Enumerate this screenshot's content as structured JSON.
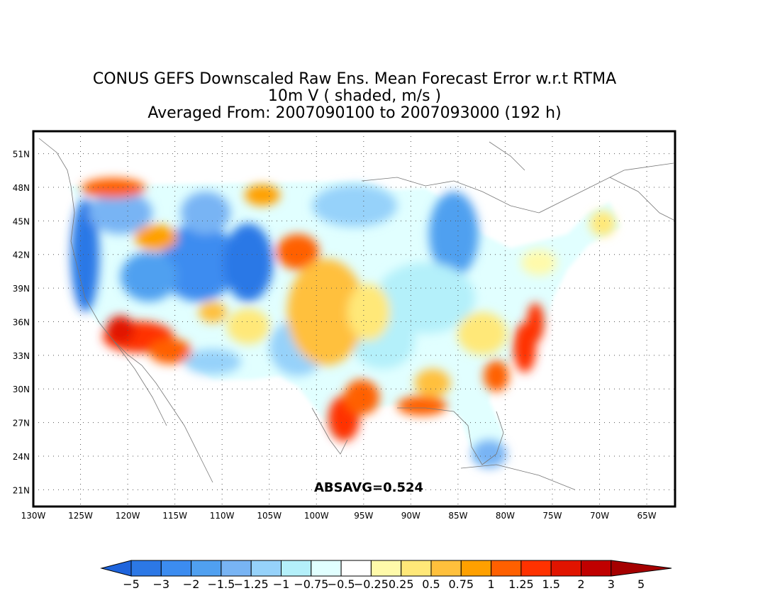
{
  "title": {
    "line1": "CONUS GEFS Downscaled Raw Ens. Mean Forecast Error w.r.t RTMA",
    "line2": "10m V ( shaded, m/s )",
    "line3": "Averaged From: 2007090100 to 2007093000 (192 h)"
  },
  "annotation": "ABSAVG=0.524",
  "map": {
    "lon_range": [
      -130,
      -62
    ],
    "lat_range": [
      19.5,
      53
    ],
    "lon_ticks": [
      "130W",
      "125W",
      "120W",
      "115W",
      "110W",
      "105W",
      "100W",
      "95W",
      "90W",
      "85W",
      "80W",
      "75W",
      "70W",
      "65W"
    ],
    "lat_ticks": [
      "21N",
      "24N",
      "27N",
      "30N",
      "33N",
      "36N",
      "39N",
      "42N",
      "45N",
      "48N",
      "51N"
    ],
    "grid": "dotted"
  },
  "colorbar": {
    "labels": [
      "−5",
      "−3",
      "−2",
      "−1.5",
      "−1.25",
      "−1",
      "−0.75",
      "−0.5",
      "−0.25",
      "0.25",
      "0.5",
      "0.75",
      "1",
      "1.25",
      "1.5",
      "2",
      "3",
      "5"
    ],
    "colors": [
      "#1e64dc",
      "#2c78e6",
      "#3c8cf0",
      "#50a0f0",
      "#78b4f4",
      "#96d2fa",
      "#b4f0fa",
      "#e1ffff",
      "#ffffff",
      "#fffaaa",
      "#ffe878",
      "#ffc03c",
      "#ffa000",
      "#ff6000",
      "#ff3200",
      "#e11400",
      "#c00000",
      "#a50000"
    ]
  },
  "regions": [
    {
      "name": "pacific-coast-negative",
      "lon": -124,
      "lat": 42,
      "level": "-2"
    },
    {
      "name": "southern-california-positive",
      "lon": -118,
      "lat": 35,
      "level": "2"
    },
    {
      "name": "texas-gulf-positive",
      "lon": -97.5,
      "lat": 27,
      "level": "2"
    },
    {
      "name": "southeast-coast-positive",
      "lon": -77,
      "lat": 34.5,
      "level": "2"
    },
    {
      "name": "great-lakes-negative",
      "lon": -86.5,
      "lat": 44,
      "level": "-1.5"
    },
    {
      "name": "great-plains-positive",
      "lon": -99,
      "lat": 36,
      "level": "0.75"
    }
  ]
}
